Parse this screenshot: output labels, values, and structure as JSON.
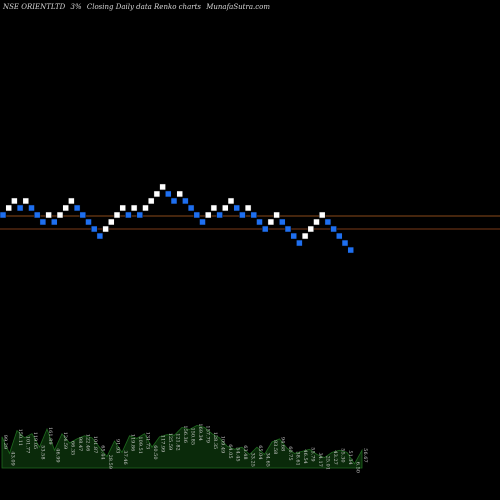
{
  "header": {
    "symbol": "NSE ORIENTLTD",
    "brick_size": "3%",
    "description": "Closing Daily data  Renko  charts",
    "site": "MunafaSutra.com"
  },
  "colors": {
    "background": "#000000",
    "up_brick": "#ffffff",
    "down_brick": "#1e6ff0",
    "up_line": "#8a4a1a",
    "down_line": "#7a3a18",
    "volume_fill": "#0a2a0a",
    "volume_stroke": "#1f6b1f"
  },
  "chart_data": {
    "type": "renko",
    "bricks": [
      {
        "level": 1,
        "dir": "down"
      },
      {
        "level": 2,
        "dir": "up"
      },
      {
        "level": 3,
        "dir": "up"
      },
      {
        "level": 2,
        "dir": "down"
      },
      {
        "level": 3,
        "dir": "up"
      },
      {
        "level": 2,
        "dir": "down"
      },
      {
        "level": 1,
        "dir": "down"
      },
      {
        "level": 0,
        "dir": "down"
      },
      {
        "level": 1,
        "dir": "up"
      },
      {
        "level": 0,
        "dir": "down"
      },
      {
        "level": 1,
        "dir": "up"
      },
      {
        "level": 2,
        "dir": "up"
      },
      {
        "level": 3,
        "dir": "up"
      },
      {
        "level": 2,
        "dir": "down"
      },
      {
        "level": 1,
        "dir": "down"
      },
      {
        "level": 0,
        "dir": "down"
      },
      {
        "level": -1,
        "dir": "down"
      },
      {
        "level": -2,
        "dir": "down"
      },
      {
        "level": -1,
        "dir": "up"
      },
      {
        "level": 0,
        "dir": "up"
      },
      {
        "level": 1,
        "dir": "up"
      },
      {
        "level": 2,
        "dir": "up"
      },
      {
        "level": 1,
        "dir": "down"
      },
      {
        "level": 2,
        "dir": "up"
      },
      {
        "level": 1,
        "dir": "down"
      },
      {
        "level": 2,
        "dir": "up"
      },
      {
        "level": 3,
        "dir": "up"
      },
      {
        "level": 4,
        "dir": "up"
      },
      {
        "level": 5,
        "dir": "up"
      },
      {
        "level": 4,
        "dir": "down"
      },
      {
        "level": 3,
        "dir": "down"
      },
      {
        "level": 4,
        "dir": "up"
      },
      {
        "level": 3,
        "dir": "down"
      },
      {
        "level": 2,
        "dir": "down"
      },
      {
        "level": 1,
        "dir": "down"
      },
      {
        "level": 0,
        "dir": "down"
      },
      {
        "level": 1,
        "dir": "up"
      },
      {
        "level": 2,
        "dir": "up"
      },
      {
        "level": 1,
        "dir": "down"
      },
      {
        "level": 2,
        "dir": "up"
      },
      {
        "level": 3,
        "dir": "up"
      },
      {
        "level": 2,
        "dir": "down"
      },
      {
        "level": 1,
        "dir": "down"
      },
      {
        "level": 2,
        "dir": "up"
      },
      {
        "level": 1,
        "dir": "down"
      },
      {
        "level": 0,
        "dir": "down"
      },
      {
        "level": -1,
        "dir": "down"
      },
      {
        "level": 0,
        "dir": "up"
      },
      {
        "level": 1,
        "dir": "up"
      },
      {
        "level": 0,
        "dir": "down"
      },
      {
        "level": -1,
        "dir": "down"
      },
      {
        "level": -2,
        "dir": "down"
      },
      {
        "level": -3,
        "dir": "down"
      },
      {
        "level": -2,
        "dir": "up"
      },
      {
        "level": -1,
        "dir": "up"
      },
      {
        "level": 0,
        "dir": "up"
      },
      {
        "level": 1,
        "dir": "up"
      },
      {
        "level": 0,
        "dir": "down"
      },
      {
        "level": -1,
        "dir": "down"
      },
      {
        "level": -2,
        "dir": "down"
      },
      {
        "level": -3,
        "dir": "down"
      },
      {
        "level": -4,
        "dir": "down"
      }
    ],
    "reference_levels": [
      0.5,
      -1.5
    ],
    "volume_labels": [
      "99.29",
      "43.09",
      "150.11",
      "101.77",
      "119.05",
      "53.58",
      "161.89",
      "46.99",
      "124.59",
      "66.35",
      "98.47",
      "122.46",
      "101.87",
      "65.44",
      "28.59",
      "91.93",
      "37.46",
      "119.86",
      "109.51",
      "131.73",
      "60.50",
      "117.99",
      "125.59",
      "121.82",
      "156.36",
      "150.85",
      "169.34",
      "157.79",
      "128.35",
      "109.49",
      "64.05",
      "54.45",
      "63.48",
      "33.25",
      "65.04",
      "34.65",
      "83.58",
      "94.68",
      "60.75",
      "38.61",
      "46.54",
      "55.79",
      "34.17",
      "25.01",
      "43.27",
      "55.30",
      "51.34",
      "6.50",
      "56.67"
    ],
    "volume_heights": [
      60,
      28,
      72,
      58,
      66,
      40,
      75,
      34,
      66,
      48,
      56,
      62,
      58,
      40,
      22,
      52,
      30,
      62,
      57,
      66,
      40,
      60,
      64,
      63,
      78,
      74,
      82,
      78,
      66,
      58,
      42,
      36,
      40,
      26,
      40,
      26,
      50,
      56,
      38,
      28,
      32,
      36,
      26,
      20,
      30,
      34,
      30,
      8,
      34
    ]
  }
}
